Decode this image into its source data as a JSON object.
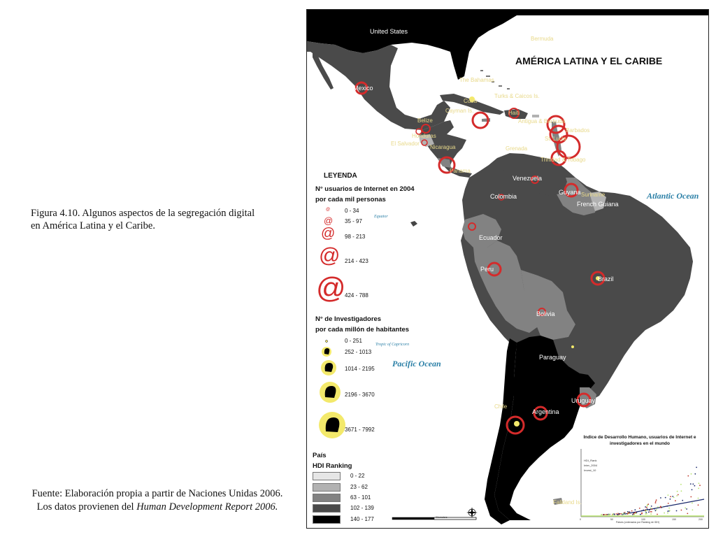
{
  "captions": {
    "figure_line1": "Figura 4.10. Algunos aspectos de la segregación digital",
    "figure_line2": "en América Latina y el Caribe.",
    "source_line1": "Fuente: Elaboración propia a partir de Naciones Unidas 2006.",
    "source_line2_prefix": "Los datos provienen del ",
    "source_line2_italic": "Human Development Report 2006."
  },
  "map": {
    "title": "AMÉRICA LATINA Y EL CARIBE",
    "oceans": {
      "atlantic": "Atlantic Ocean",
      "pacific": "Pacific Ocean"
    },
    "minor_labels": {
      "equator": "Equator",
      "tropic": "Tropic of Capricorn"
    },
    "country_labels": [
      "United States",
      "Mexico",
      "Belize",
      "Honduras",
      "El Salvador",
      "Nicaragua",
      "Panama",
      "Colombia",
      "Venezuela",
      "Guyana",
      "French Guiana",
      "Ecuador",
      "Peru",
      "Brazil",
      "Bolivia",
      "Paraguay",
      "Uruguay",
      "Argentina",
      "Chile",
      "Cuba",
      "Haiti",
      "Trinidad & Tobago",
      "Antigua & Barbuda",
      "Bermuda",
      "The Bahamas",
      "Cayman Is.",
      "Turks & Caicos Is.",
      "Suriname",
      "Grenada",
      "Barbados",
      "St. Lucia",
      "Falkland Is."
    ],
    "colors": {
      "hdi_0_22": "#e6e6e6",
      "hdi_23_62": "#b2b2b2",
      "hdi_63_101": "#828282",
      "hdi_102_139": "#4a4a4a",
      "hdi_140_177": "#000000",
      "internet_symbol": "#d42b2b",
      "researcher_symbol": "#f3e96b",
      "ocean_text": "#2a7fa6"
    }
  },
  "legend": {
    "title": "LEYENDA",
    "internet_heading_1": "N° usuarios de Internet en 2004",
    "internet_heading_2": "por cada mil personas",
    "internet_classes": [
      "0 - 34",
      "35 - 97",
      "98 - 213",
      "214 - 423",
      "424 - 788"
    ],
    "internet_symbol": "@",
    "researchers_heading_1": "N° de Investigadores",
    "researchers_heading_2": "por cada millón de habitantes",
    "researcher_classes": [
      "0 - 251",
      "252 - 1013",
      "1014 - 2195",
      "2196 - 3670",
      "3671 - 7992"
    ],
    "researcher_icon": "head-icon",
    "pais_heading": "País",
    "hdi_heading": "HDI Ranking",
    "hdi_classes": [
      "0 - 22",
      "23 - 62",
      "63 - 101",
      "102 - 139",
      "140 - 177"
    ]
  },
  "inset_chart": {
    "title_line1": "Indice de Desarrollo Humano, usuarios de Internet e",
    "title_line2": "investigadores en el mundo",
    "legend": [
      "HDI_Rank",
      "Inter_2004",
      "Invest_10"
    ],
    "xlabel": "Paises (ordenados por Ranking de IDH)",
    "x_ticks": [
      "0",
      "50",
      "100",
      "150",
      "200"
    ],
    "y_ticks": [
      "0",
      "100",
      "200",
      "300",
      "400",
      "500",
      "600",
      "700",
      "800",
      "900"
    ]
  },
  "scale_bar": {
    "units": "Kilometers"
  }
}
